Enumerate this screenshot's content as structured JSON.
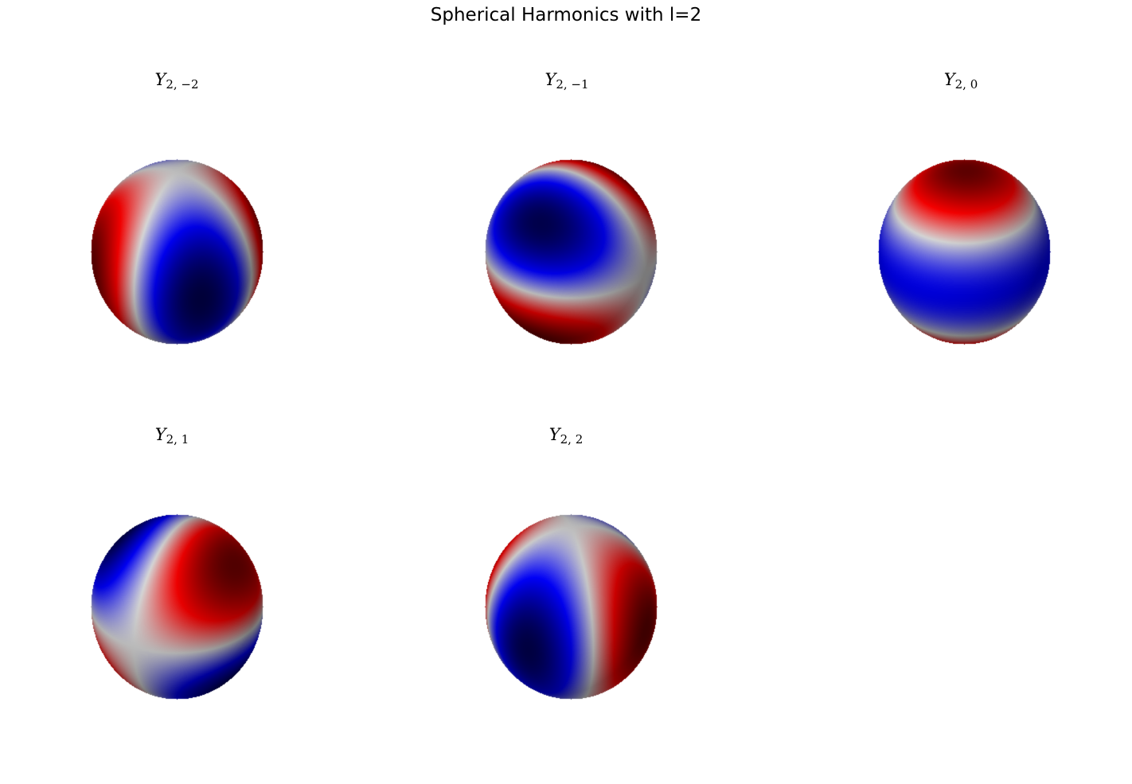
{
  "title": "Spherical Harmonics with l=2",
  "colors": {
    "negative": "#0000ff",
    "zero": "#dddddd",
    "positive": "#ff0000",
    "shade": "#000000"
  },
  "chart_data": [
    {
      "type": "surface3d",
      "title": "Y_{2,-2}",
      "symbol": "Y",
      "subscript": "2, −2",
      "l": 2,
      "m": -2,
      "colormap": "seismic"
    },
    {
      "type": "surface3d",
      "title": "Y_{2,-1}",
      "symbol": "Y",
      "subscript": "2, −1",
      "l": 2,
      "m": -1,
      "colormap": "seismic"
    },
    {
      "type": "surface3d",
      "title": "Y_{2,0}",
      "symbol": "Y",
      "subscript": "2, 0",
      "l": 2,
      "m": 0,
      "colormap": "seismic"
    },
    {
      "type": "surface3d",
      "title": "Y_{2,1}",
      "symbol": "Y",
      "subscript": "2, 1",
      "l": 2,
      "m": 1,
      "colormap": "seismic"
    },
    {
      "type": "surface3d",
      "title": "Y_{2,2}",
      "symbol": "Y",
      "subscript": "2, 2",
      "l": 2,
      "m": 2,
      "colormap": "seismic"
    }
  ]
}
